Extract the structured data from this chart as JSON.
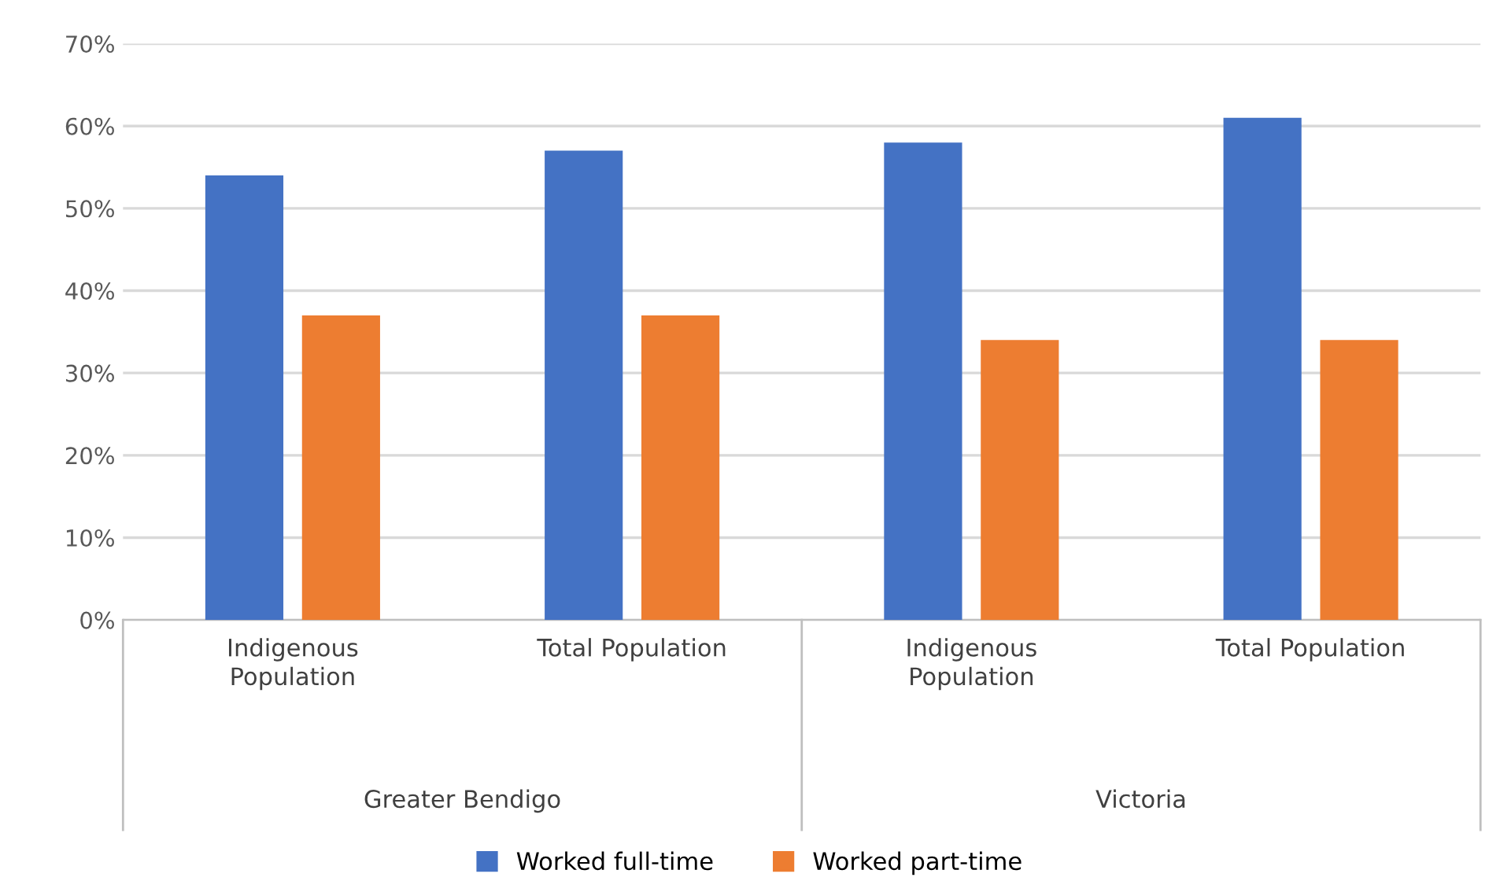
{
  "chart_data": {
    "type": "bar",
    "categories": [
      "Indigenous\nPopulation",
      "Total Population",
      "Indigenous\nPopulation",
      "Total Population"
    ],
    "series": [
      {
        "name": "Worked full-time",
        "color": "#4472c4",
        "values": [
          54,
          57,
          58,
          61
        ]
      },
      {
        "name": "Worked part-time",
        "color": "#ed7d31",
        "values": [
          37,
          37,
          34,
          34
        ]
      }
    ],
    "annotations": [
      "Greater Bendigo",
      "Victoria"
    ],
    "ylim": [
      0,
      70
    ],
    "yticks": [
      {
        "value": 0,
        "label": "0%"
      },
      {
        "value": 10,
        "label": "10%"
      },
      {
        "value": 20,
        "label": "20%"
      },
      {
        "value": 30,
        "label": "30%"
      },
      {
        "value": 40,
        "label": "40%"
      },
      {
        "value": 50,
        "label": "50%"
      },
      {
        "value": 60,
        "label": "60%"
      },
      {
        "value": 70,
        "label": "70%"
      }
    ],
    "grid": "y",
    "legend": "bottom"
  }
}
